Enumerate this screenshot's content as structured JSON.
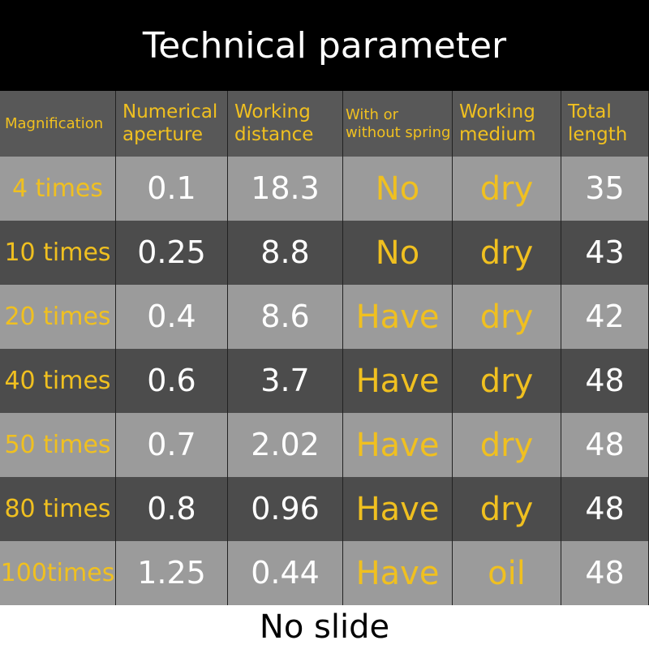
{
  "title": "Technical parameter",
  "table": {
    "header": [
      "Magnification",
      "Numerical aperture",
      "Working distance",
      "With or without spring",
      "Working medium",
      "Total length"
    ],
    "rows": [
      [
        "4 times",
        "0.1",
        "18.3",
        "No",
        "dry",
        "35"
      ],
      [
        "10 times",
        "0.25",
        "8.8",
        "No",
        "dry",
        "43"
      ],
      [
        "20 times",
        "0.4",
        "8.6",
        "Have",
        "dry",
        "42"
      ],
      [
        "40 times",
        "0.6",
        "3.7",
        "Have",
        "dry",
        "48"
      ],
      [
        "50 times",
        "0.7",
        "2.02",
        "Have",
        "dry",
        "48"
      ],
      [
        "80 times",
        "0.8",
        "0.96",
        "Have",
        "dry",
        "48"
      ],
      [
        "100times",
        "1.25",
        "0.44",
        "Have",
        "oil",
        "48"
      ]
    ]
  },
  "footer": "No slide"
}
